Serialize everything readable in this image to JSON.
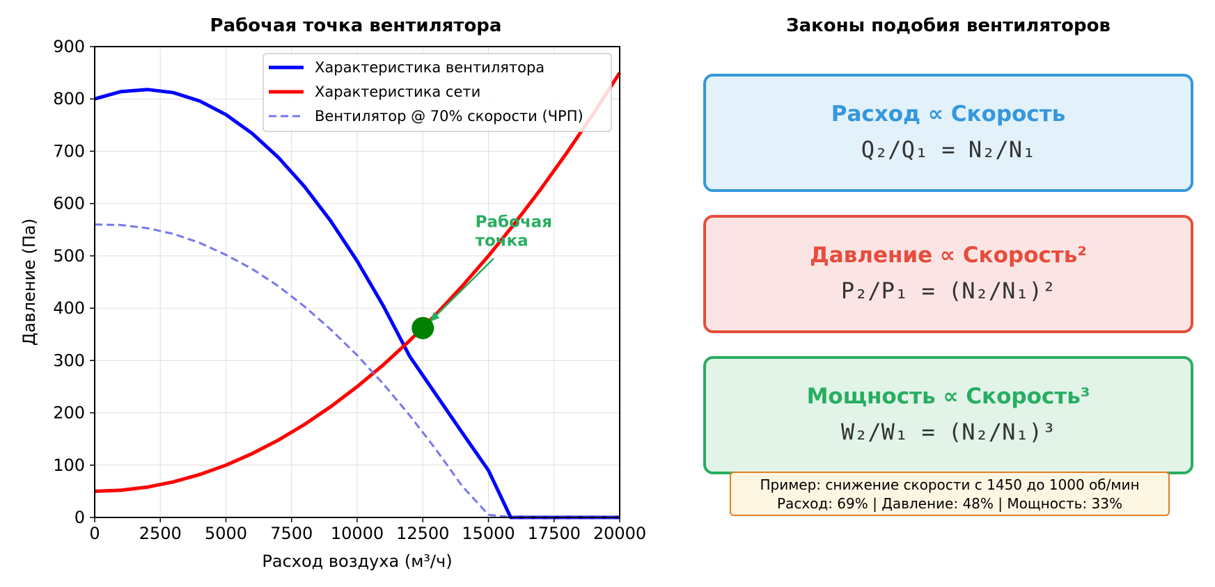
{
  "left_panel": {
    "title": "Рабочая точка вентилятора",
    "annotation": [
      "Рабочая",
      "точка"
    ]
  },
  "right_panel": {
    "title": "Законы подобия вентиляторов",
    "laws": [
      {
        "title": "Расход ∝ Скорость",
        "formula": "Q₂/Q₁ = N₂/N₁",
        "color": "#3498db",
        "bg": "#e3f1fa"
      },
      {
        "title": "Давление ∝ Скорость²",
        "formula": "P₂/P₁ = (N₂/N₁)²",
        "color": "#e74c3c",
        "bg": "#fbe5e4"
      },
      {
        "title": "Мощность ∝ Скорость³",
        "formula": "W₂/W₁ = (N₂/N₁)³",
        "color": "#27ae60",
        "bg": "#e2f3e8"
      }
    ],
    "example": {
      "line1": "Пример: снижение скорости с 1450 до 1000 об/мин",
      "line2": "Расход: 69% | Давление: 48% | Мощность: 33%"
    }
  },
  "chart_data": {
    "type": "line",
    "title": "Рабочая точка вентилятора",
    "xlabel": "Расход воздуха (м³/ч)",
    "ylabel": "Давление (Па)",
    "xlim": [
      0,
      20000
    ],
    "ylim": [
      0,
      900
    ],
    "xticks": [
      0,
      2500,
      5000,
      7500,
      10000,
      12500,
      15000,
      17500,
      20000
    ],
    "yticks": [
      0,
      100,
      200,
      300,
      400,
      500,
      600,
      700,
      800,
      900
    ],
    "grid": true,
    "legend_position": "top-right",
    "series": [
      {
        "name": "Характеристика вентилятора",
        "color": "#0000ff",
        "style": "solid",
        "x": [
          0,
          1000,
          2000,
          3000,
          4000,
          5000,
          6000,
          7000,
          8000,
          9000,
          10000,
          11000,
          12000,
          13000,
          14000,
          15000,
          15850,
          16000,
          18000,
          20000
        ],
        "y": [
          800,
          814,
          818,
          812,
          796,
          770,
          734,
          688,
          632,
          566,
          490,
          404,
          308,
          235,
          162,
          90,
          0,
          0,
          0,
          0
        ]
      },
      {
        "name": "Характеристика сети",
        "color": "#ff0000",
        "style": "solid",
        "x": [
          0,
          1000,
          2000,
          3000,
          4000,
          5000,
          6000,
          7000,
          8000,
          9000,
          10000,
          11000,
          12000,
          13000,
          14000,
          15000,
          16000,
          17000,
          18000,
          19000,
          20000
        ],
        "y": [
          50,
          52,
          58,
          68,
          82,
          100,
          122,
          148,
          178,
          212,
          250,
          292,
          338,
          388,
          442,
          500,
          562,
          628,
          698,
          772,
          850
        ]
      },
      {
        "name": "Вентилятор @ 70% скорости (ЧРП)",
        "color": "#7777ee",
        "style": "dashed",
        "x": [
          0,
          1000,
          2000,
          3000,
          4000,
          5000,
          6000,
          7000,
          8000,
          9000,
          10000,
          11000,
          12000,
          13000,
          14000,
          15000,
          16000,
          16200,
          18000,
          20000
        ],
        "y": [
          560,
          559,
          553,
          542,
          525,
          502,
          475,
          442,
          403,
          359,
          310,
          255,
          195,
          130,
          60,
          5,
          0,
          0,
          0,
          0
        ]
      }
    ],
    "operating_point": {
      "x": 12500,
      "y": 362,
      "color": "#008000"
    },
    "annotation_color": "#27ae60",
    "annotation_text_at": {
      "x": 14500,
      "y": 555
    },
    "annotation_arrow_from": {
      "x": 15200,
      "y": 495
    }
  }
}
